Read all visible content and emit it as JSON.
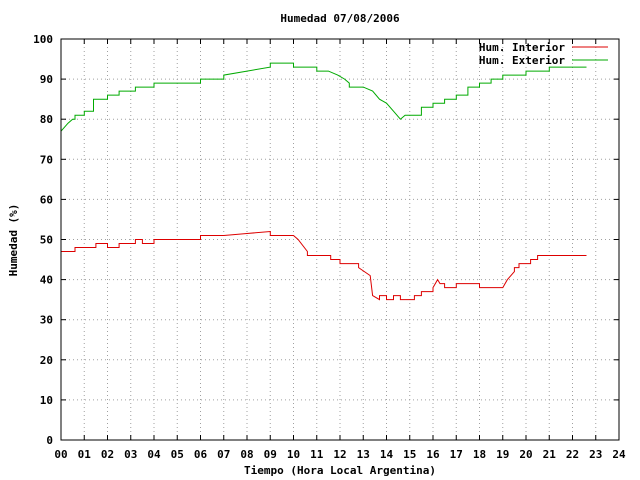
{
  "chart_data": {
    "type": "line",
    "title": "Humedad 07/08/2006",
    "xlabel": "Tiempo (Hora Local Argentina)",
    "ylabel": "Humedad (%)",
    "xlim": [
      0,
      24
    ],
    "ylim": [
      0,
      100
    ],
    "xticks": [
      "00",
      "01",
      "02",
      "03",
      "04",
      "05",
      "06",
      "07",
      "08",
      "09",
      "10",
      "11",
      "12",
      "13",
      "14",
      "15",
      "16",
      "17",
      "18",
      "19",
      "20",
      "21",
      "22",
      "23",
      "24"
    ],
    "yticks": [
      0,
      10,
      20,
      30,
      40,
      50,
      60,
      70,
      80,
      90,
      100
    ],
    "grid": true,
    "legend_position": "top-right",
    "series": [
      {
        "name": "Hum. Interior",
        "color": "#dd0000",
        "x": [
          0,
          0.6,
          0.6,
          1.1,
          1.1,
          1.5,
          1.5,
          2.0,
          2.0,
          2.5,
          2.5,
          3.2,
          3.2,
          3.5,
          3.5,
          4.0,
          4.0,
          5.0,
          5.0,
          6.0,
          6.0,
          7.0,
          7.0,
          8.0,
          9.0,
          9.0,
          10.0,
          10.2,
          10.6,
          10.6,
          11.6,
          11.6,
          12.0,
          12.0,
          12.8,
          12.8,
          13.3,
          13.4,
          13.7,
          13.7,
          14.0,
          14.0,
          14.3,
          14.3,
          14.6,
          14.6,
          15.2,
          15.2,
          15.5,
          15.5,
          16.0,
          16.0,
          16.2,
          16.3,
          16.5,
          16.5,
          17.0,
          17.0,
          17.5,
          17.5,
          18.0,
          18.0,
          18.5,
          18.5,
          19.0,
          19.2,
          19.5,
          19.5,
          19.7,
          19.7,
          20.2,
          20.2,
          20.5,
          20.5,
          21.0,
          21.0,
          22.6
        ],
        "values": [
          47,
          47,
          48,
          48,
          48,
          48,
          49,
          49,
          48,
          48,
          49,
          49,
          50,
          50,
          49,
          49,
          50,
          50,
          50,
          50,
          51,
          51,
          51,
          51.5,
          52,
          51,
          51,
          50,
          47,
          46,
          46,
          45,
          45,
          44,
          44,
          43,
          41,
          36,
          35,
          36,
          36,
          35,
          35,
          36,
          36,
          35,
          35,
          36,
          36,
          37,
          37,
          38,
          40,
          39,
          39,
          38,
          38,
          39,
          39,
          39,
          39,
          38,
          38,
          38,
          38,
          40,
          42,
          43,
          43,
          44,
          44,
          45,
          45,
          46,
          46,
          46,
          46
        ]
      },
      {
        "name": "Hum. Exterior",
        "color": "#00aa00",
        "x": [
          0,
          0.3,
          0.5,
          0.6,
          0.6,
          1.0,
          1.0,
          1.4,
          1.4,
          2.0,
          2.0,
          2.5,
          2.5,
          3.2,
          3.2,
          4.0,
          4.0,
          5.0,
          5.0,
          6.0,
          6.0,
          7.0,
          7.0,
          8.0,
          9.0,
          9.0,
          9.5,
          10.0,
          10.0,
          10.5,
          11.0,
          11.0,
          11.5,
          11.9,
          12.2,
          12.4,
          12.4,
          13.0,
          13.0,
          13.4,
          13.7,
          14.0,
          14.3,
          14.6,
          14.8,
          15.0,
          15.0,
          15.5,
          15.5,
          16.0,
          16.0,
          16.5,
          16.5,
          17.0,
          17.0,
          17.5,
          17.5,
          18.0,
          18.0,
          18.5,
          18.5,
          19.0,
          19.0,
          19.5,
          19.5,
          20.0,
          20.0,
          20.5,
          20.5,
          21.0,
          21.0,
          21.5,
          21.5,
          22.6
        ],
        "values": [
          77,
          79,
          80,
          80,
          81,
          81,
          82,
          82,
          85,
          85,
          86,
          86,
          87,
          87,
          88,
          88,
          89,
          89,
          89,
          89,
          90,
          90,
          91,
          92,
          93,
          94,
          94,
          94,
          93,
          93,
          93,
          92,
          92,
          91,
          90,
          89,
          88,
          88,
          88,
          87,
          85,
          84,
          82,
          80,
          81,
          81,
          81,
          81,
          83,
          83,
          84,
          84,
          85,
          85,
          86,
          86,
          88,
          88,
          89,
          89,
          90,
          90,
          91,
          91,
          91,
          91,
          92,
          92,
          92,
          92,
          93,
          93,
          93,
          93
        ]
      }
    ]
  }
}
